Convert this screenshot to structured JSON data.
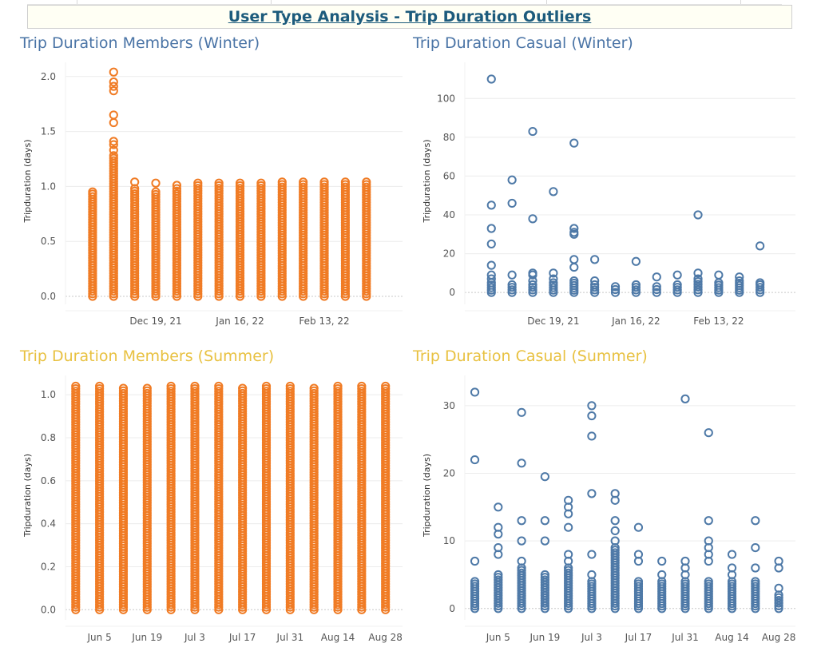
{
  "dashboard_title": "User Type Analysis  - Trip Duration Outliers",
  "colors": {
    "member": "#f07b24",
    "casual": "#4e79a7",
    "title_blue": "#4a74a6",
    "title_gold": "#e8c141",
    "header_text": "#1c5b7c"
  },
  "chart_data": [
    {
      "title": "Trip Duration Members (Winter)",
      "type": "scatter",
      "ylabel": "Tripduration (days)",
      "ylim": [
        0,
        2.1
      ],
      "yticks": [
        0.0,
        0.5,
        1.0,
        1.5,
        2.0
      ],
      "ytick_labels": [
        "0.0",
        "0.5",
        "1.0",
        "1.5",
        "2.0"
      ],
      "xticks": [
        "Dec 19, 21",
        "Jan 16, 22",
        "Feb 13, 22"
      ],
      "xlim": [
        "Nov 18, 21",
        "Mar 11, 22"
      ],
      "xtick_dates": [
        "2021-12-19",
        "2022-01-16",
        "2022-02-13"
      ],
      "grid": true,
      "series": [
        {
          "color": "#f07b24",
          "points": [
            {
              "date": "2021-11-28",
              "min": 0,
              "max": 0.93,
              "extra": [
                0.95
              ]
            },
            {
              "date": "2021-12-05",
              "min": 0,
              "max": 1.28,
              "extra": [
                1.33,
                1.38,
                1.41,
                1.58,
                1.65,
                1.87,
                1.91,
                1.95,
                2.04
              ]
            },
            {
              "date": "2021-12-12",
              "min": 0,
              "max": 0.98,
              "extra": [
                1.04
              ]
            },
            {
              "date": "2021-12-19",
              "min": 0,
              "max": 0.95,
              "extra": [
                1.03
              ]
            },
            {
              "date": "2021-12-26",
              "min": 0,
              "max": 0.98,
              "extra": [
                1.01
              ]
            },
            {
              "date": "2022-01-02",
              "min": 0,
              "max": 1.03,
              "extra": []
            },
            {
              "date": "2022-01-09",
              "min": 0,
              "max": 1.03,
              "extra": []
            },
            {
              "date": "2022-01-16",
              "min": 0,
              "max": 1.03,
              "extra": []
            },
            {
              "date": "2022-01-23",
              "min": 0,
              "max": 1.03,
              "extra": []
            },
            {
              "date": "2022-01-30",
              "min": 0,
              "max": 1.04,
              "extra": []
            },
            {
              "date": "2022-02-06",
              "min": 0,
              "max": 1.04,
              "extra": []
            },
            {
              "date": "2022-02-13",
              "min": 0,
              "max": 1.04,
              "extra": []
            },
            {
              "date": "2022-02-20",
              "min": 0,
              "max": 1.04,
              "extra": []
            },
            {
              "date": "2022-02-27",
              "min": 0,
              "max": 1.04,
              "extra": []
            }
          ]
        }
      ]
    },
    {
      "title": "Trip Duration Casual (Winter)",
      "type": "scatter",
      "ylabel": "Tripduration (days)",
      "ylim": [
        -2,
        117
      ],
      "yticks": [
        0,
        20,
        40,
        60,
        80,
        100
      ],
      "ytick_labels": [
        "0",
        "20",
        "40",
        "60",
        "80",
        "100"
      ],
      "xticks": [
        "Dec 19, 21",
        "Jan 16, 22",
        "Feb 13, 22"
      ],
      "xlim": [
        "Nov 18, 21",
        "Mar 11, 22"
      ],
      "xtick_dates": [
        "2021-12-19",
        "2022-01-16",
        "2022-02-13"
      ],
      "grid": true,
      "series": [
        {
          "color": "#4e79a7",
          "points": [
            {
              "date": "2021-11-28",
              "min": 0,
              "max": 5,
              "extra": [
                7,
                9,
                14,
                25,
                33,
                45,
                110
              ]
            },
            {
              "date": "2021-12-05",
              "min": 0,
              "max": 4,
              "extra": [
                9,
                46,
                58
              ]
            },
            {
              "date": "2021-12-12",
              "min": 0,
              "max": 4,
              "extra": [
                6,
                9,
                10,
                38,
                83
              ]
            },
            {
              "date": "2021-12-19",
              "min": 0,
              "max": 5,
              "extra": [
                7,
                10,
                52
              ]
            },
            {
              "date": "2021-12-26",
              "min": 0,
              "max": 6,
              "extra": [
                13,
                17,
                30,
                31,
                33,
                77
              ]
            },
            {
              "date": "2022-01-02",
              "min": 0,
              "max": 4,
              "extra": [
                6,
                17
              ]
            },
            {
              "date": "2022-01-09",
              "min": 0,
              "max": 3,
              "extra": []
            },
            {
              "date": "2022-01-16",
              "min": 0,
              "max": 4,
              "extra": [
                16
              ]
            },
            {
              "date": "2022-01-23",
              "min": 0,
              "max": 3,
              "extra": [
                8
              ]
            },
            {
              "date": "2022-01-30",
              "min": 0,
              "max": 4,
              "extra": [
                9
              ]
            },
            {
              "date": "2022-02-06",
              "min": 0,
              "max": 7,
              "extra": [
                10,
                40
              ]
            },
            {
              "date": "2022-02-13",
              "min": 0,
              "max": 5,
              "extra": [
                9
              ]
            },
            {
              "date": "2022-02-20",
              "min": 0,
              "max": 6,
              "extra": [
                8
              ]
            },
            {
              "date": "2022-02-27",
              "min": 0,
              "max": 4,
              "extra": [
                5,
                24
              ]
            }
          ]
        }
      ]
    },
    {
      "title": "Trip Duration Members (Summer)",
      "type": "scatter",
      "ylabel": "Tripduration (days)",
      "ylim": [
        -0.01,
        1.075
      ],
      "yticks": [
        0.0,
        0.2,
        0.4,
        0.6,
        0.8,
        1.0
      ],
      "ytick_labels": [
        "0.0",
        "0.2",
        "0.4",
        "0.6",
        "0.8",
        "1.0"
      ],
      "xticks": [
        "Jun 5",
        "Jun 19",
        "Jul 3",
        "Jul 17",
        "Jul 31",
        "Aug 14",
        "Aug 28"
      ],
      "xlim": [
        "May 26",
        "Sep 2"
      ],
      "xtick_dates": [
        "2022-06-05",
        "2022-06-19",
        "2022-07-03",
        "2022-07-17",
        "2022-07-31",
        "2022-08-14",
        "2022-08-28"
      ],
      "grid": true,
      "series": [
        {
          "color": "#f07b24",
          "points": [
            {
              "date": "2022-05-29",
              "min": 0,
              "max": 1.04,
              "extra": []
            },
            {
              "date": "2022-06-05",
              "min": 0,
              "max": 1.04,
              "extra": []
            },
            {
              "date": "2022-06-12",
              "min": 0,
              "max": 1.03,
              "extra": []
            },
            {
              "date": "2022-06-19",
              "min": 0,
              "max": 1.03,
              "extra": []
            },
            {
              "date": "2022-06-26",
              "min": 0,
              "max": 1.04,
              "extra": []
            },
            {
              "date": "2022-07-03",
              "min": 0,
              "max": 1.04,
              "extra": []
            },
            {
              "date": "2022-07-10",
              "min": 0,
              "max": 1.04,
              "extra": []
            },
            {
              "date": "2022-07-17",
              "min": 0,
              "max": 1.03,
              "extra": []
            },
            {
              "date": "2022-07-24",
              "min": 0,
              "max": 1.04,
              "extra": []
            },
            {
              "date": "2022-07-31",
              "min": 0,
              "max": 1.04,
              "extra": []
            },
            {
              "date": "2022-08-07",
              "min": 0,
              "max": 1.03,
              "extra": []
            },
            {
              "date": "2022-08-14",
              "min": 0,
              "max": 1.04,
              "extra": []
            },
            {
              "date": "2022-08-21",
              "min": 0,
              "max": 1.04,
              "extra": []
            },
            {
              "date": "2022-08-28",
              "min": 0,
              "max": 1.04,
              "extra": []
            }
          ]
        }
      ]
    },
    {
      "title": "Trip Duration Casual (Summer)",
      "type": "scatter",
      "ylabel": "Tripduration (days)",
      "ylim": [
        -0.5,
        34
      ],
      "yticks": [
        0,
        10,
        20,
        30
      ],
      "ytick_labels": [
        "0",
        "10",
        "20",
        "30"
      ],
      "xticks": [
        "Jun 5",
        "Jun 19",
        "Jul 3",
        "Jul 17",
        "Jul 31",
        "Aug 14",
        "Aug 28"
      ],
      "xlim": [
        "May 26",
        "Sep 2"
      ],
      "xtick_dates": [
        "2022-06-05",
        "2022-06-19",
        "2022-07-03",
        "2022-07-17",
        "2022-07-31",
        "2022-08-14",
        "2022-08-28"
      ],
      "grid": true,
      "series": [
        {
          "color": "#4e79a7",
          "points": [
            {
              "date": "2022-05-29",
              "min": 0,
              "max": 4,
              "extra": [
                7,
                22,
                32
              ]
            },
            {
              "date": "2022-06-05",
              "min": 0,
              "max": 5,
              "extra": [
                8,
                9,
                11,
                12,
                15
              ]
            },
            {
              "date": "2022-06-12",
              "min": 0,
              "max": 6,
              "extra": [
                7,
                10,
                13,
                21.5,
                29
              ]
            },
            {
              "date": "2022-06-19",
              "min": 0,
              "max": 5,
              "extra": [
                10,
                13,
                19.5
              ]
            },
            {
              "date": "2022-06-26",
              "min": 0,
              "max": 6,
              "extra": [
                7,
                8,
                12,
                14,
                15,
                16
              ]
            },
            {
              "date": "2022-07-03",
              "min": 0,
              "max": 4,
              "extra": [
                5,
                8,
                17,
                25.5,
                28.5,
                30
              ]
            },
            {
              "date": "2022-07-10",
              "min": 0,
              "max": 9,
              "extra": [
                10,
                11.5,
                13,
                16,
                17
              ]
            },
            {
              "date": "2022-07-17",
              "min": 0,
              "max": 4,
              "extra": [
                7,
                8,
                12
              ]
            },
            {
              "date": "2022-07-24",
              "min": 0,
              "max": 4,
              "extra": [
                5,
                7
              ]
            },
            {
              "date": "2022-07-31",
              "min": 0,
              "max": 4,
              "extra": [
                5,
                6,
                7,
                31
              ]
            },
            {
              "date": "2022-08-07",
              "min": 0,
              "max": 4,
              "extra": [
                7,
                8,
                9,
                10,
                13,
                26
              ]
            },
            {
              "date": "2022-08-14",
              "min": 0,
              "max": 4,
              "extra": [
                5,
                6,
                8
              ]
            },
            {
              "date": "2022-08-21",
              "min": 0,
              "max": 4,
              "extra": [
                6,
                9,
                13
              ]
            },
            {
              "date": "2022-08-28",
              "min": 0,
              "max": 2,
              "extra": [
                3,
                6,
                7
              ]
            }
          ]
        }
      ]
    }
  ]
}
